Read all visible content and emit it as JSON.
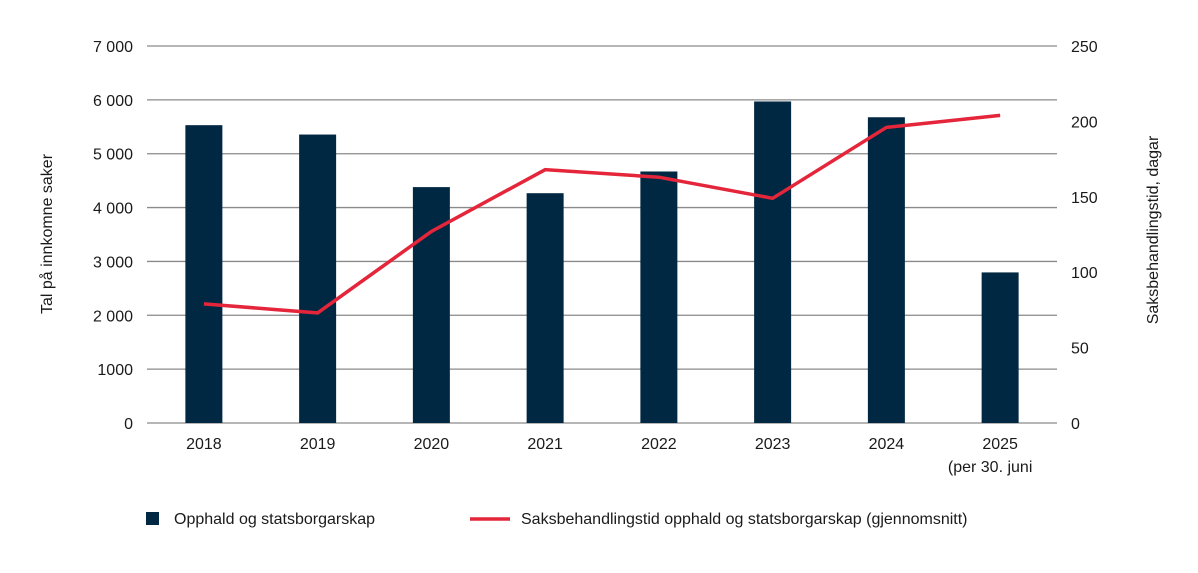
{
  "chart_data": {
    "type": "bar+line",
    "categories": [
      "2018",
      "2019",
      "2020",
      "2021",
      "2022",
      "2023",
      "2024",
      "2025"
    ],
    "category_sublabels": [
      "",
      "",
      "",
      "",
      "",
      "",
      "",
      "(per 30. juni"
    ],
    "series": [
      {
        "name": "Opphald og statsborgarskap",
        "type": "bar",
        "axis": "left",
        "color": "#002842",
        "values": [
          5530,
          5356,
          4380,
          4267,
          4670,
          5970,
          5677,
          2796
        ]
      },
      {
        "name": "Saksbehandlingstid opphald og statsborgarskap (gjennomsnitt)",
        "type": "line",
        "axis": "right",
        "color": "#e4253a",
        "values": [
          79,
          73,
          127,
          168,
          163,
          149,
          196,
          204
        ]
      }
    ],
    "ylabel": "Tal på innkomne saker",
    "y2label": "Saksbehandlingstid, dagar",
    "ylim": [
      0,
      7000
    ],
    "y2lim": [
      0,
      250
    ],
    "yticks": [
      "0",
      "1000",
      "2 000",
      "3 000",
      "4 000",
      "5 000",
      "6 000",
      "7 000"
    ],
    "y2ticks": [
      "0",
      "50",
      "100",
      "150",
      "200",
      "250"
    ],
    "grid": true,
    "legend": "bottom"
  }
}
